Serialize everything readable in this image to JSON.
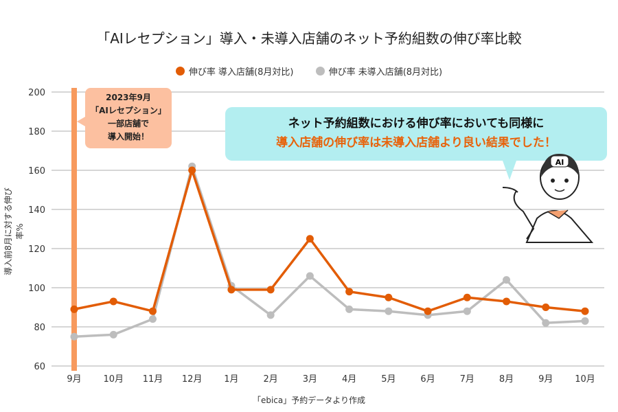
{
  "chart_data": {
    "type": "line",
    "title": "「AIレセプション」導入・未導入店舗のネット予約組数の伸び率比較",
    "xlabel": "",
    "ylabel": "導入前8月に対する伸び率%",
    "categories": [
      "9月",
      "10月",
      "11月",
      "12月",
      "1月",
      "2月",
      "3月",
      "4月",
      "5月",
      "6月",
      "7月",
      "8月",
      "9月",
      "10月"
    ],
    "ylim": [
      60,
      200
    ],
    "yticks": [
      60,
      80,
      100,
      120,
      140,
      160,
      180,
      200
    ],
    "grid": true,
    "legend_placement": "top-center",
    "series": [
      {
        "name": "伸び率 導入店舗(8月対比)",
        "color": "#e25c05",
        "values": [
          89,
          93,
          88,
          160,
          99,
          99,
          125,
          98,
          95,
          88,
          95,
          93,
          90,
          88
        ]
      },
      {
        "name": "伸び率 未導入店舗(8月対比)",
        "color": "#bdbdbd",
        "values": [
          75,
          76,
          84,
          162,
          101,
          86,
          106,
          89,
          88,
          86,
          88,
          104,
          82,
          83
        ]
      }
    ],
    "annotations": {
      "start_marker_category": "9月",
      "start_note": [
        "2023年9月",
        "「AIレセプション」",
        "一部店舗で",
        "導入開始！"
      ],
      "callout_line1": "ネット予約組数における伸び率においても同様に",
      "callout_line2": "導入店舗の伸び率は未導入店舗より良い結果でした！",
      "mascot_badge": "AI"
    },
    "source": "「ebica」予約データより作成"
  }
}
